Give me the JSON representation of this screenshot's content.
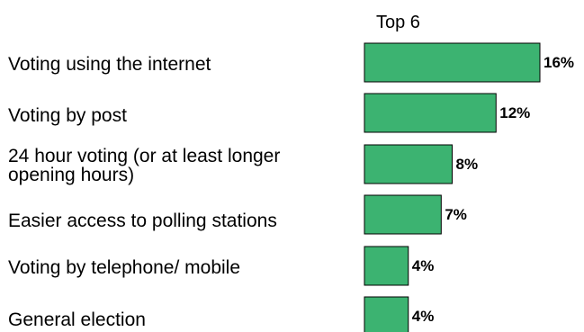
{
  "chart_data": {
    "type": "bar",
    "orientation": "horizontal",
    "title": "Top 6",
    "categories": [
      "Voting using the internet",
      "Voting by post",
      "24 hour voting (or at least longer\n  opening hours)",
      "Easier access to polling stations",
      "Voting by telephone/ mobile",
      "General election"
    ],
    "values": [
      16,
      12,
      8,
      7,
      4,
      4
    ],
    "value_labels": [
      "16%",
      "12%",
      "8%",
      "7%",
      "4%",
      "4%"
    ],
    "xlabel": "",
    "ylabel": "",
    "xlim": [
      0,
      16
    ],
    "grid": false,
    "legend": "none",
    "bar_color": "#3cb371",
    "bar_edge_color": "#000000"
  }
}
